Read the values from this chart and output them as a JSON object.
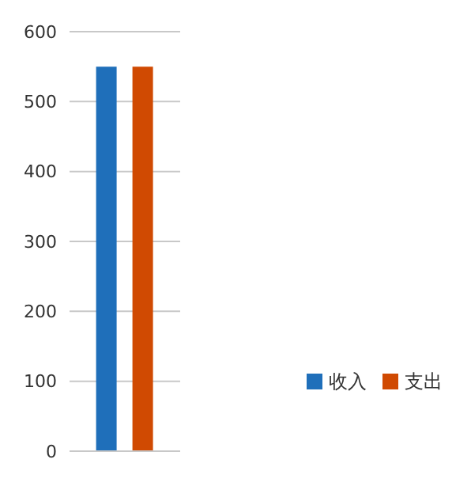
{
  "chart_data": {
    "type": "bar",
    "categories": [
      null
    ],
    "series": [
      {
        "name": "收入",
        "color": "#1f6fba",
        "values": [
          550
        ]
      },
      {
        "name": "支出",
        "color": "#d04a02",
        "values": [
          550
        ]
      }
    ],
    "ylim": [
      0,
      600
    ],
    "yticks": [
      0,
      100,
      200,
      300,
      400,
      500,
      600
    ],
    "grid": "y",
    "legend": "right"
  }
}
